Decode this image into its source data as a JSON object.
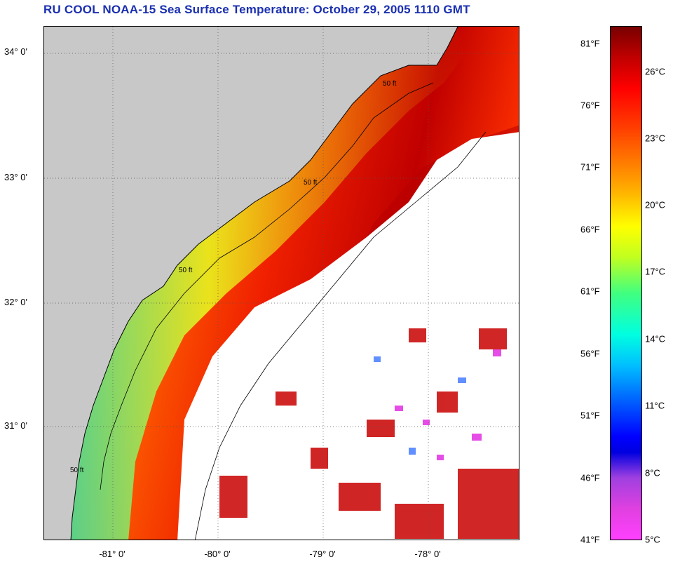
{
  "title": "RU COOL  NOAA-15  Sea Surface Temperature:  October 29, 2005 1110 GMT",
  "map": {
    "lat_labels": [
      "34° 0'",
      "33° 0'",
      "32° 0'",
      "31° 0'"
    ],
    "lon_labels": [
      "-81° 0'",
      "-80° 0'",
      "-79° 0'",
      "-78° 0'"
    ],
    "contour_label": "50 ft"
  },
  "colorbar": {
    "fahrenheit_labels": [
      "81°F",
      "76°F",
      "71°F",
      "66°F",
      "61°F",
      "56°F",
      "51°F",
      "46°F",
      "41°F"
    ],
    "celsius_labels": [
      "26°C",
      "23°C",
      "20°C",
      "17°C",
      "14°C",
      "11°C",
      "8°C",
      "5°C"
    ],
    "range_c": [
      5,
      28
    ]
  },
  "colors": {
    "title": "#1a2fb0",
    "land": "#c8c8c8",
    "cloud": "#ffffff"
  }
}
